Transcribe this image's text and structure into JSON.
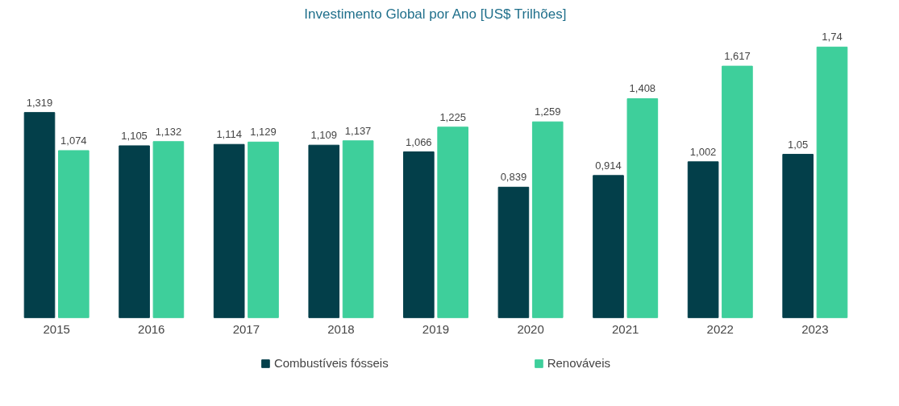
{
  "chart_data": {
    "type": "bar",
    "title": "Investimento Global por Ano [US$ Trilhões]",
    "categories": [
      "2015",
      "2016",
      "2017",
      "2018",
      "2019",
      "2020",
      "2021",
      "2022",
      "2023"
    ],
    "series": [
      {
        "name": "Combustíveis fósseis",
        "color": "#033f4a",
        "values": [
          1.319,
          1.105,
          1.114,
          1.109,
          1.066,
          0.839,
          0.914,
          1.002,
          1.05
        ],
        "value_labels": [
          "1,319",
          "1,105",
          "1,114",
          "1,109",
          "1,066",
          "0,839",
          "0,914",
          "1,002",
          "1,05"
        ]
      },
      {
        "name": "Renováveis",
        "color": "#3ecf9b",
        "values": [
          1.074,
          1.132,
          1.129,
          1.137,
          1.225,
          1.259,
          1.408,
          1.617,
          1.74
        ],
        "value_labels": [
          "1,074",
          "1,132",
          "1,129",
          "1,137",
          "1,225",
          "1,259",
          "1,408",
          "1,617",
          "1,74"
        ]
      }
    ],
    "legend": "bottom"
  }
}
